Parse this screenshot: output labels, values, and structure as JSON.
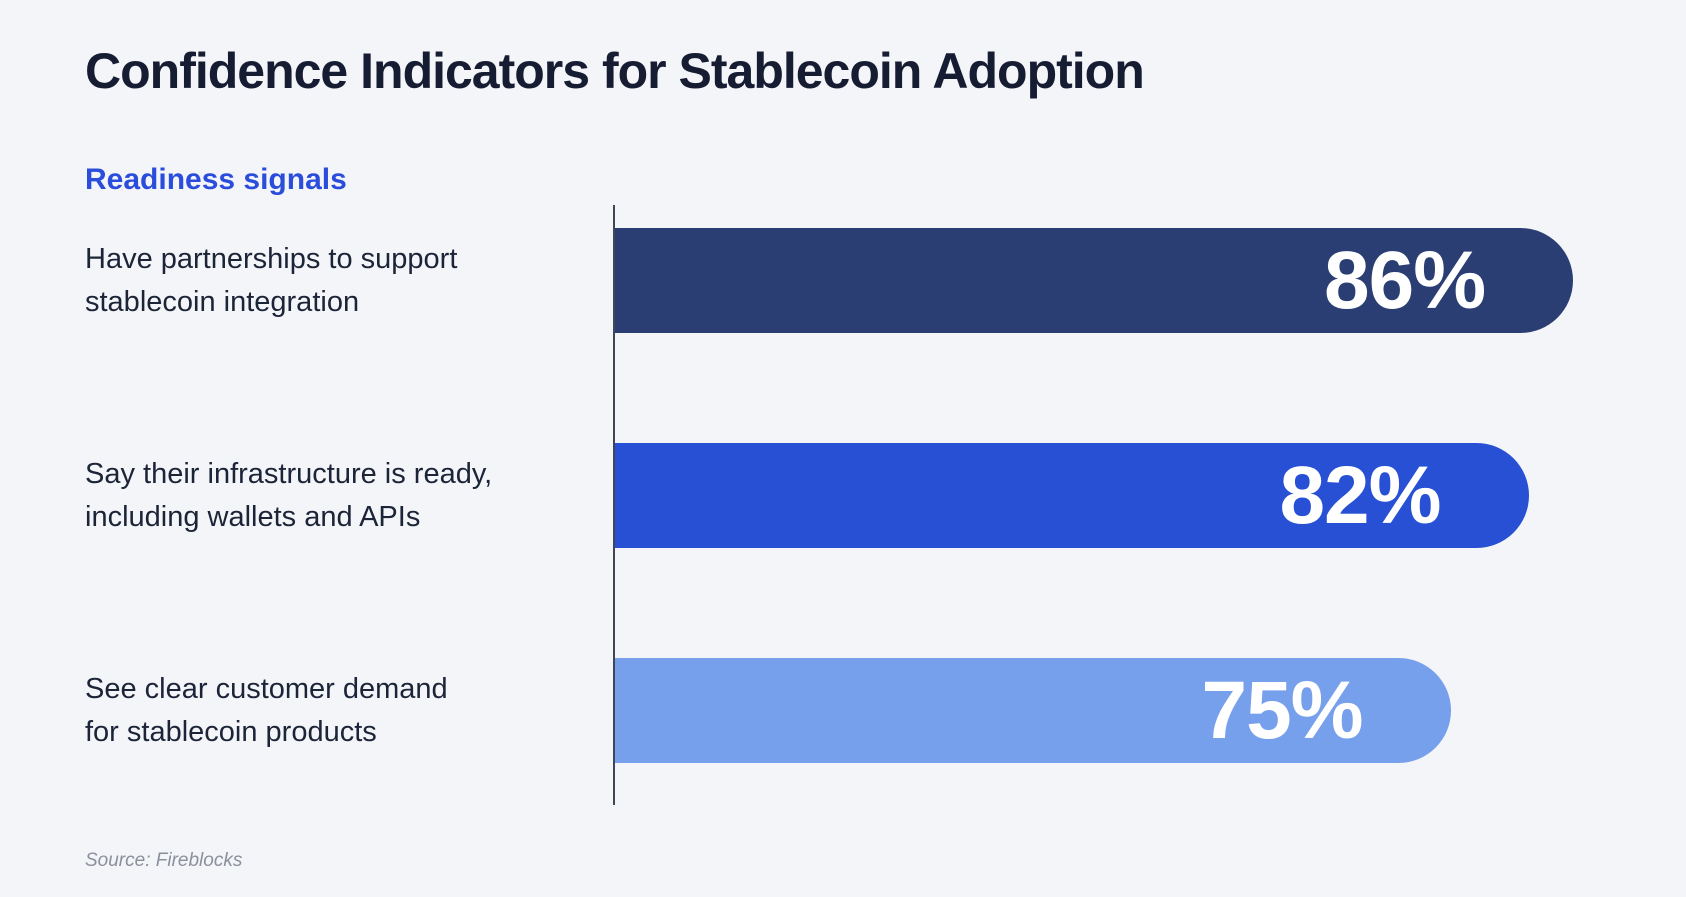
{
  "header": {
    "title": "Confidence Indicators for Stablecoin Adoption",
    "subtitle": "Readiness signals"
  },
  "footer": {
    "source": "Source: Fireblocks"
  },
  "colors": {
    "background": "#f4f5f9",
    "title_text": "#161d33",
    "subtitle_accent": "#2a4ddb",
    "label_text": "#1c2438",
    "value_text": "#ffffff",
    "axis_line": "#3f4656",
    "source_text": "#8b909d"
  },
  "chart_data": {
    "type": "bar",
    "orientation": "horizontal",
    "title": "Confidence Indicators for Stablecoin Adoption",
    "group_label": "Readiness signals",
    "categories": [
      "Have partnerships to support\nstablecoin integration",
      "Say their infrastructure is ready,\nincluding wallets and APIs",
      "See clear customer demand\nfor stablecoin products"
    ],
    "values": [
      86,
      82,
      75
    ],
    "value_labels": [
      "86%",
      "82%",
      "75%"
    ],
    "unit": "%",
    "xlim": [
      0,
      92
    ],
    "bar_colors": [
      "#2a3e73",
      "#2750d4",
      "#769fec"
    ],
    "grid": false,
    "legend": false,
    "source": "Source: Fireblocks"
  }
}
